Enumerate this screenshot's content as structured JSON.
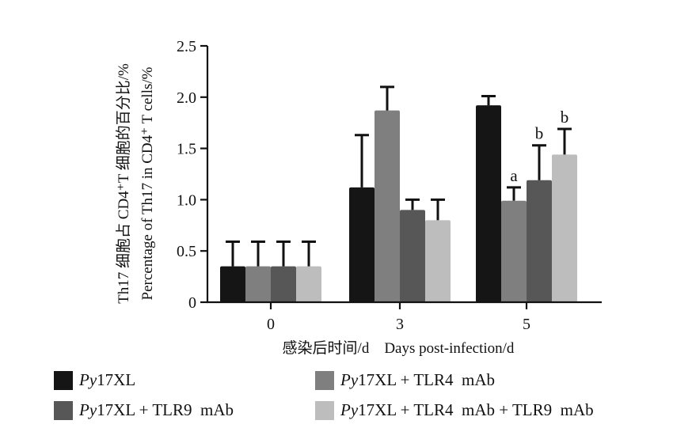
{
  "chart_data": {
    "type": "bar",
    "ylabel_cn": "Th17 细胞占 CD4⁺T 细胞的百分比/%",
    "ylabel_en": "Percentage of Th17 in CD4⁺ T cells/%",
    "xlabel": "感染后时间/d    Days post-infection/d",
    "categories": [
      "0",
      "3",
      "5"
    ],
    "ylim": [
      0,
      2.5
    ],
    "yticks": [
      "0",
      "0.5",
      "1.0",
      "1.5",
      "2.0",
      "2.5"
    ],
    "ytick_values": [
      0,
      0.5,
      1.0,
      1.5,
      2.0,
      2.5
    ],
    "series": [
      {
        "name_italic": "Py",
        "name_rest": "17XL",
        "color": "#151515",
        "values": [
          0.35,
          1.12,
          1.92
        ],
        "errors": [
          0.24,
          0.51,
          0.09
        ],
        "letters": [
          "",
          "",
          ""
        ]
      },
      {
        "name_italic": "Py",
        "name_rest": "17XL + TLR4  mAb",
        "color": "#7f7f7f",
        "values": [
          0.35,
          1.87,
          0.99
        ],
        "errors": [
          0.24,
          0.23,
          0.13
        ],
        "letters": [
          "",
          "",
          "a"
        ]
      },
      {
        "name_italic": "Py",
        "name_rest": "17XL + TLR9  mAb",
        "color": "#575757",
        "values": [
          0.35,
          0.9,
          1.19
        ],
        "errors": [
          0.24,
          0.1,
          0.34
        ],
        "letters": [
          "",
          "",
          "b"
        ]
      },
      {
        "name_italic": "Py",
        "name_rest": "17XL + TLR4  mAb + TLR9  mAb",
        "color": "#bdbdbd",
        "values": [
          0.35,
          0.8,
          1.44
        ],
        "errors": [
          0.24,
          0.2,
          0.25
        ],
        "letters": [
          "",
          "",
          "b"
        ]
      }
    ],
    "legend_position": "bottom",
    "grid": false
  }
}
